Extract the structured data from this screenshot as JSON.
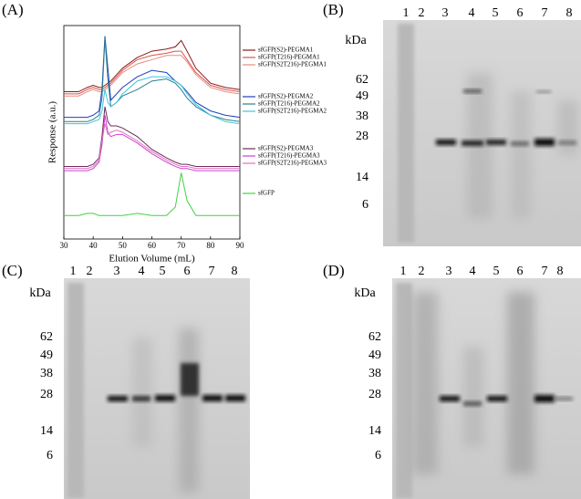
{
  "panel_labels": [
    "(A)",
    "(B)",
    "(C)",
    "(D)"
  ],
  "chart_data": {
    "type": "line",
    "xlabel": "Elution Volume (mL)",
    "ylabel": "Response (a.u.)",
    "x": [
      30,
      35,
      38,
      40,
      42,
      43,
      44,
      45,
      46,
      48,
      50,
      55,
      60,
      65,
      68,
      70,
      72,
      75,
      80,
      85,
      90
    ],
    "xlim": [
      30,
      90
    ],
    "xticks": [
      30,
      40,
      50,
      60,
      70,
      80,
      90
    ],
    "ylim": [
      0,
      100
    ],
    "series": [
      {
        "name": "sfGFP(S2)-PEGMA1",
        "color": "#8b1a1a",
        "values": [
          69,
          69,
          71,
          72,
          71,
          71,
          72,
          73,
          74,
          77,
          80,
          85,
          88,
          89,
          90,
          93,
          88,
          80,
          73,
          71,
          70
        ]
      },
      {
        "name": "sfGFP(T216)-PEGMA1",
        "color": "#d9534f",
        "values": [
          68,
          68,
          70,
          71,
          70,
          70,
          71,
          72,
          73,
          76,
          79,
          84,
          86,
          87,
          88,
          88,
          84,
          78,
          72,
          70,
          69
        ]
      },
      {
        "name": "sfGFP(S2T216)-PEGMA1",
        "color": "#e88a80",
        "values": [
          67,
          67,
          69,
          70,
          69,
          69,
          70,
          71,
          72,
          75,
          78,
          82,
          84,
          86,
          86,
          86,
          83,
          77,
          71,
          69,
          68
        ]
      },
      {
        "name": "sfGFP(S2)-PEGMA2",
        "color": "#1f3fbf",
        "values": [
          57,
          57,
          57,
          58,
          60,
          70,
          95,
          80,
          65,
          68,
          71,
          76,
          79,
          78,
          74,
          72,
          69,
          64,
          60,
          58,
          57
        ]
      },
      {
        "name": "sfGFP(T216)-PEGMA2",
        "color": "#2a7f8f",
        "values": [
          55,
          55,
          55,
          56,
          58,
          66,
          94,
          75,
          62,
          64,
          67,
          70,
          74,
          75,
          73,
          70,
          66,
          62,
          58,
          56,
          55
        ]
      },
      {
        "name": "sfGFP(S2T216)-PEGMA2",
        "color": "#3fc4e0",
        "values": [
          54,
          54,
          54,
          55,
          56,
          60,
          70,
          64,
          62,
          64,
          68,
          74,
          76,
          76,
          74,
          72,
          68,
          63,
          58,
          55,
          54
        ]
      },
      {
        "name": "sfGFP(S2)-PEGMA3",
        "color": "#6b2d5a",
        "values": [
          34,
          34,
          34,
          35,
          38,
          48,
          62,
          55,
          53,
          53,
          52,
          48,
          42,
          38,
          36,
          35,
          35,
          34,
          34,
          34,
          34
        ]
      },
      {
        "name": "sfGFP(T216)-PEGMA3",
        "color": "#d040d0",
        "values": [
          32,
          32,
          32,
          33,
          36,
          44,
          58,
          50,
          48,
          49,
          49,
          45,
          40,
          36,
          34,
          33,
          33,
          32,
          32,
          32,
          32
        ]
      },
      {
        "name": "sfGFP(S2T216)-PEGMA3",
        "color": "#e070c0",
        "values": [
          33,
          33,
          33,
          34,
          37,
          46,
          54,
          49,
          50,
          51,
          50,
          46,
          41,
          37,
          35,
          34,
          34,
          33,
          33,
          33,
          33
        ]
      },
      {
        "name": "sfGFP",
        "color": "#3fd43f",
        "values": [
          11,
          11,
          12,
          12,
          11,
          11,
          11,
          11,
          11,
          11,
          11,
          12,
          11,
          11,
          15,
          31,
          18,
          11,
          11,
          11,
          11
        ]
      }
    ]
  },
  "gels": {
    "unit": "kDa",
    "lanes": [
      1,
      2,
      3,
      4,
      5,
      6,
      7,
      8
    ],
    "markers": [
      62,
      49,
      38,
      28,
      14,
      6
    ]
  }
}
